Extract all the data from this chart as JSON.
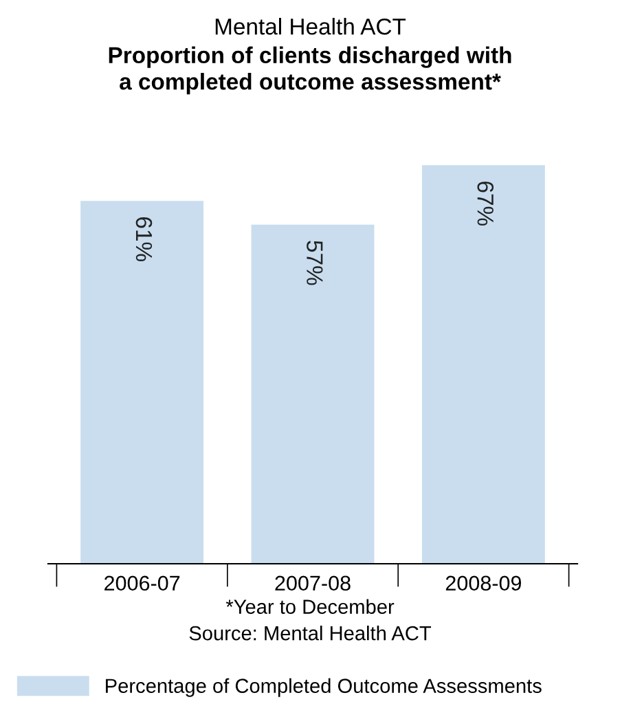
{
  "chart_data": {
    "type": "bar",
    "subtitle": "Mental Health ACT",
    "title": "Proportion of clients discharged with\na completed outcome assessment*",
    "categories": [
      "2006-07",
      "2007-08",
      "2008-09"
    ],
    "series": [
      {
        "name": "Percentage of Completed Outcome Assessments",
        "color": "#c9ddef",
        "values": [
          61,
          57,
          67
        ],
        "value_labels": [
          "61%",
          "57%",
          "67%"
        ]
      }
    ],
    "annotations": [
      "*Year to December",
      "Source: Mental Health ACT"
    ],
    "legend": "bottom",
    "grid": false
  }
}
